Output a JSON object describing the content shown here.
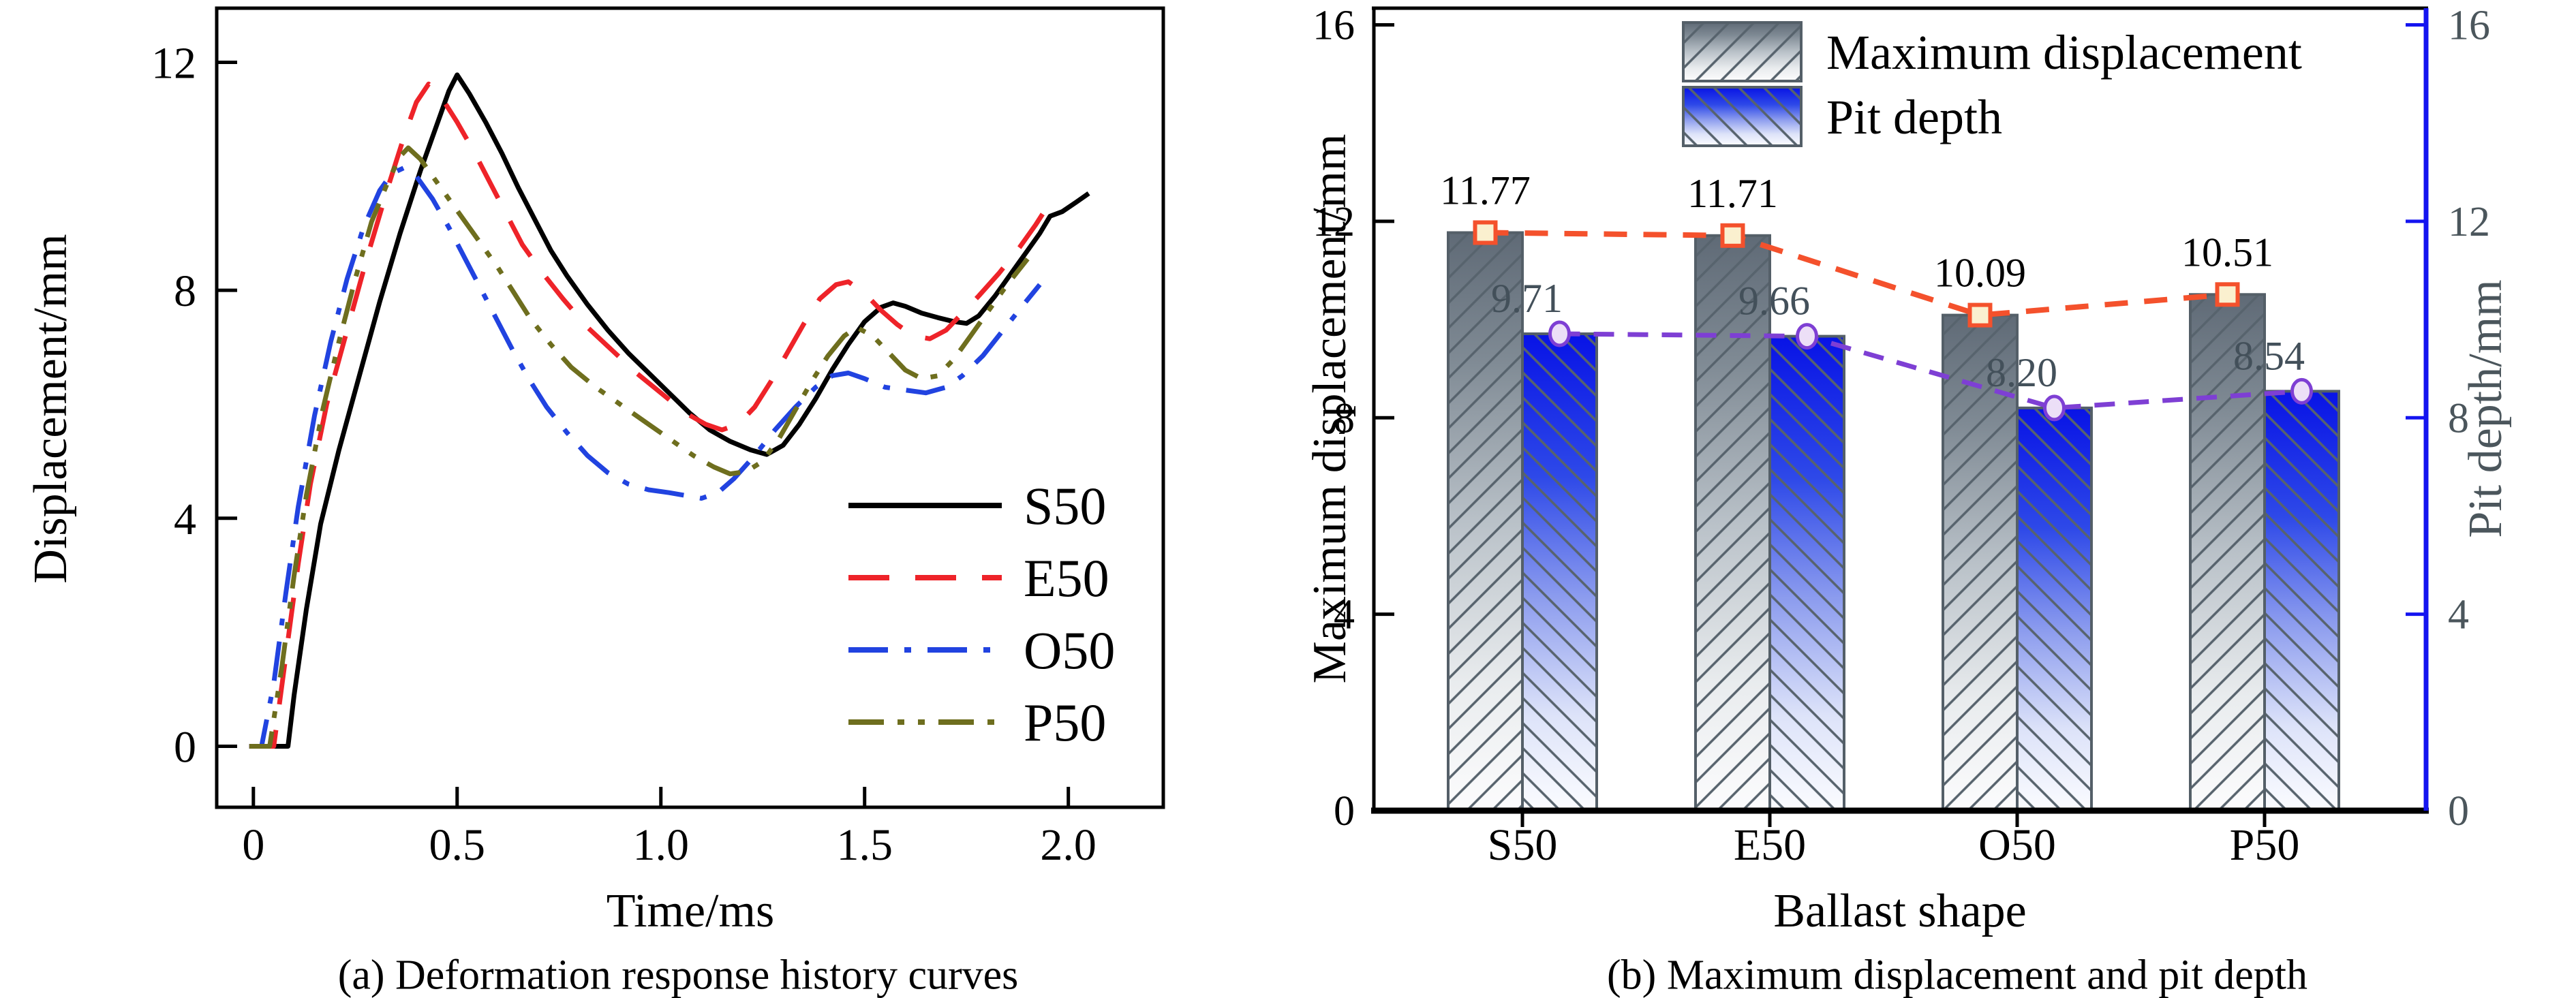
{
  "figure": {
    "background": "#ffffff",
    "caption_a": "(a) Deformation response history curves",
    "caption_b": "(b) Maximum displacement and pit depth"
  },
  "chart_data": [
    {
      "id": "a",
      "type": "line",
      "title": "(a) Deformation response history curves",
      "xlabel": "Time/ms",
      "ylabel": "Displacement/mm",
      "xlim": [
        -0.09,
        2.233
      ],
      "ylim": [
        -1.07,
        12.95
      ],
      "xticks": [
        0,
        0.5,
        1.0,
        1.5,
        2.0
      ],
      "xtick_labels": [
        "0",
        "0.5",
        "1.0",
        "1.5",
        "2.0"
      ],
      "yticks": [
        0,
        4,
        8,
        12
      ],
      "ytick_labels": [
        "0",
        "4",
        "8",
        "12"
      ],
      "grid": false,
      "legend_position": "lower right",
      "series": [
        {
          "name": "S50",
          "color": "#000000",
          "style": "solid",
          "points": [
            [
              -0.01,
              0
            ],
            [
              0.085,
              0
            ],
            [
              0.1,
              0.9
            ],
            [
              0.13,
              2.4
            ],
            [
              0.165,
              3.9
            ],
            [
              0.21,
              5.2
            ],
            [
              0.26,
              6.5
            ],
            [
              0.31,
              7.8
            ],
            [
              0.36,
              9.0
            ],
            [
              0.41,
              10.1
            ],
            [
              0.45,
              10.9
            ],
            [
              0.48,
              11.5
            ],
            [
              0.5,
              11.78
            ],
            [
              0.53,
              11.45
            ],
            [
              0.57,
              10.95
            ],
            [
              0.61,
              10.4
            ],
            [
              0.65,
              9.8
            ],
            [
              0.69,
              9.25
            ],
            [
              0.73,
              8.7
            ],
            [
              0.77,
              8.25
            ],
            [
              0.82,
              7.75
            ],
            [
              0.87,
              7.3
            ],
            [
              0.92,
              6.9
            ],
            [
              0.97,
              6.55
            ],
            [
              1.02,
              6.2
            ],
            [
              1.07,
              5.85
            ],
            [
              1.12,
              5.55
            ],
            [
              1.17,
              5.35
            ],
            [
              1.22,
              5.2
            ],
            [
              1.26,
              5.12
            ],
            [
              1.3,
              5.28
            ],
            [
              1.34,
              5.65
            ],
            [
              1.38,
              6.1
            ],
            [
              1.42,
              6.6
            ],
            [
              1.46,
              7.05
            ],
            [
              1.5,
              7.45
            ],
            [
              1.54,
              7.7
            ],
            [
              1.57,
              7.78
            ],
            [
              1.6,
              7.72
            ],
            [
              1.64,
              7.6
            ],
            [
              1.68,
              7.52
            ],
            [
              1.72,
              7.45
            ],
            [
              1.75,
              7.42
            ],
            [
              1.78,
              7.55
            ],
            [
              1.82,
              7.9
            ],
            [
              1.86,
              8.3
            ],
            [
              1.9,
              8.7
            ],
            [
              1.93,
              9.0
            ],
            [
              1.955,
              9.3
            ],
            [
              1.985,
              9.38
            ],
            [
              2.02,
              9.55
            ],
            [
              2.05,
              9.7
            ]
          ]
        },
        {
          "name": "E50",
          "color": "#ee2329",
          "style": "dash",
          "points": [
            [
              -0.01,
              0
            ],
            [
              0.05,
              0
            ],
            [
              0.08,
              1.6
            ],
            [
              0.11,
              3.2
            ],
            [
              0.14,
              4.6
            ],
            [
              0.18,
              6.0
            ],
            [
              0.23,
              7.3
            ],
            [
              0.28,
              8.6
            ],
            [
              0.33,
              9.8
            ],
            [
              0.37,
              10.7
            ],
            [
              0.4,
              11.3
            ],
            [
              0.43,
              11.62
            ],
            [
              0.46,
              11.4
            ],
            [
              0.5,
              10.95
            ],
            [
              0.54,
              10.45
            ],
            [
              0.58,
              9.9
            ],
            [
              0.62,
              9.35
            ],
            [
              0.66,
              8.8
            ],
            [
              0.71,
              8.3
            ],
            [
              0.76,
              7.85
            ],
            [
              0.82,
              7.35
            ],
            [
              0.88,
              6.95
            ],
            [
              0.94,
              6.55
            ],
            [
              1.0,
              6.2
            ],
            [
              1.06,
              5.85
            ],
            [
              1.11,
              5.65
            ],
            [
              1.15,
              5.55
            ],
            [
              1.19,
              5.65
            ],
            [
              1.23,
              5.95
            ],
            [
              1.27,
              6.4
            ],
            [
              1.31,
              6.9
            ],
            [
              1.35,
              7.4
            ],
            [
              1.39,
              7.85
            ],
            [
              1.43,
              8.1
            ],
            [
              1.46,
              8.15
            ],
            [
              1.5,
              7.95
            ],
            [
              1.54,
              7.65
            ],
            [
              1.58,
              7.4
            ],
            [
              1.62,
              7.2
            ],
            [
              1.66,
              7.15
            ],
            [
              1.7,
              7.3
            ],
            [
              1.74,
              7.6
            ],
            [
              1.78,
              7.9
            ],
            [
              1.83,
              8.3
            ],
            [
              1.88,
              8.75
            ],
            [
              1.92,
              9.15
            ],
            [
              1.96,
              9.6
            ]
          ]
        },
        {
          "name": "O50",
          "color": "#2143e0",
          "style": "dashdot",
          "points": [
            [
              -0.01,
              0
            ],
            [
              0.02,
              0
            ],
            [
              0.05,
              1.1
            ],
            [
              0.08,
              2.7
            ],
            [
              0.11,
              4.2
            ],
            [
              0.15,
              5.8
            ],
            [
              0.19,
              7.1
            ],
            [
              0.23,
              8.2
            ],
            [
              0.27,
              9.1
            ],
            [
              0.31,
              9.75
            ],
            [
              0.34,
              10.05
            ],
            [
              0.37,
              10.15
            ],
            [
              0.4,
              10.0
            ],
            [
              0.44,
              9.6
            ],
            [
              0.48,
              9.1
            ],
            [
              0.52,
              8.55
            ],
            [
              0.56,
              8.0
            ],
            [
              0.6,
              7.45
            ],
            [
              0.64,
              6.9
            ],
            [
              0.68,
              6.4
            ],
            [
              0.72,
              5.95
            ],
            [
              0.77,
              5.5
            ],
            [
              0.82,
              5.1
            ],
            [
              0.87,
              4.8
            ],
            [
              0.92,
              4.6
            ],
            [
              0.97,
              4.5
            ],
            [
              1.02,
              4.45
            ],
            [
              1.06,
              4.4
            ],
            [
              1.1,
              4.35
            ],
            [
              1.14,
              4.45
            ],
            [
              1.18,
              4.7
            ],
            [
              1.23,
              5.1
            ],
            [
              1.28,
              5.55
            ],
            [
              1.33,
              5.95
            ],
            [
              1.38,
              6.3
            ],
            [
              1.42,
              6.5
            ],
            [
              1.46,
              6.55
            ],
            [
              1.5,
              6.45
            ],
            [
              1.55,
              6.3
            ],
            [
              1.6,
              6.25
            ],
            [
              1.65,
              6.2
            ],
            [
              1.7,
              6.3
            ],
            [
              1.74,
              6.5
            ],
            [
              1.79,
              6.85
            ],
            [
              1.84,
              7.3
            ],
            [
              1.89,
              7.75
            ],
            [
              1.93,
              8.1
            ]
          ]
        },
        {
          "name": "P50",
          "color": "#6e6e1e",
          "style": "dashdotdot",
          "points": [
            [
              -0.01,
              0
            ],
            [
              0.04,
              0
            ],
            [
              0.07,
              1.4
            ],
            [
              0.1,
              3.0
            ],
            [
              0.13,
              4.4
            ],
            [
              0.17,
              5.9
            ],
            [
              0.21,
              7.1
            ],
            [
              0.25,
              8.2
            ],
            [
              0.29,
              9.2
            ],
            [
              0.33,
              9.9
            ],
            [
              0.36,
              10.35
            ],
            [
              0.38,
              10.5
            ],
            [
              0.41,
              10.3
            ],
            [
              0.44,
              10.0
            ],
            [
              0.48,
              9.6
            ],
            [
              0.52,
              9.2
            ],
            [
              0.56,
              8.8
            ],
            [
              0.6,
              8.4
            ],
            [
              0.64,
              7.95
            ],
            [
              0.68,
              7.5
            ],
            [
              0.73,
              7.05
            ],
            [
              0.78,
              6.65
            ],
            [
              0.84,
              6.3
            ],
            [
              0.9,
              6.0
            ],
            [
              0.96,
              5.7
            ],
            [
              1.02,
              5.4
            ],
            [
              1.08,
              5.1
            ],
            [
              1.13,
              4.9
            ],
            [
              1.17,
              4.78
            ],
            [
              1.21,
              4.82
            ],
            [
              1.25,
              5.0
            ],
            [
              1.29,
              5.4
            ],
            [
              1.33,
              5.9
            ],
            [
              1.37,
              6.4
            ],
            [
              1.41,
              6.85
            ],
            [
              1.45,
              7.2
            ],
            [
              1.48,
              7.35
            ],
            [
              1.52,
              7.2
            ],
            [
              1.56,
              6.9
            ],
            [
              1.6,
              6.6
            ],
            [
              1.64,
              6.45
            ],
            [
              1.68,
              6.5
            ],
            [
              1.72,
              6.8
            ],
            [
              1.76,
              7.2
            ],
            [
              1.8,
              7.6
            ],
            [
              1.85,
              8.1
            ],
            [
              1.9,
              8.55
            ]
          ]
        }
      ]
    },
    {
      "id": "b",
      "type": "bar",
      "title": "(b) Maximum displacement and pit depth",
      "xlabel": "Ballast shape",
      "ylabel_left": "Maximum displacement/mm",
      "ylabel_right": "Pit depth/mm",
      "categories": [
        "S50",
        "E50",
        "O50",
        "P50"
      ],
      "ylim": [
        0,
        16.34
      ],
      "yticks": [
        0,
        4,
        8,
        12,
        16
      ],
      "ytick_labels": [
        "0",
        "4",
        "8",
        "12",
        "16"
      ],
      "legend_position": "upper center",
      "series": [
        {
          "name": "Maximum displacement",
          "values": [
            11.77,
            11.71,
            10.09,
            10.51
          ],
          "labels": [
            "11.77",
            "11.71",
            "10.09",
            "10.51"
          ],
          "hatch": "/",
          "marker": "square"
        },
        {
          "name": "Pit depth",
          "values": [
            9.71,
            9.66,
            8.2,
            8.54
          ],
          "labels": [
            "9.71",
            "9.66",
            "8.20",
            "8.54"
          ],
          "hatch": "\\",
          "marker": "circle"
        }
      ],
      "colors": {
        "bar_gray_top": "#5f6a76",
        "bar_gray_bottom": "#fcfcfd",
        "bar_blue_top": "#0813e6",
        "bar_blue_bottom": "#fbfcff",
        "bar_outline": "#545f68",
        "hatch_line": "#57636d",
        "disp_line": "#f4512c",
        "disp_marker_fill": "#faf0cf",
        "pit_line": "#7e3fd4",
        "pit_marker_fill": "#ecdff7",
        "right_axis": "#1414f0",
        "right_tick_label": "#4b565c",
        "pit_value_label": "#43505a",
        "max_value_label": "#000000"
      }
    }
  ]
}
